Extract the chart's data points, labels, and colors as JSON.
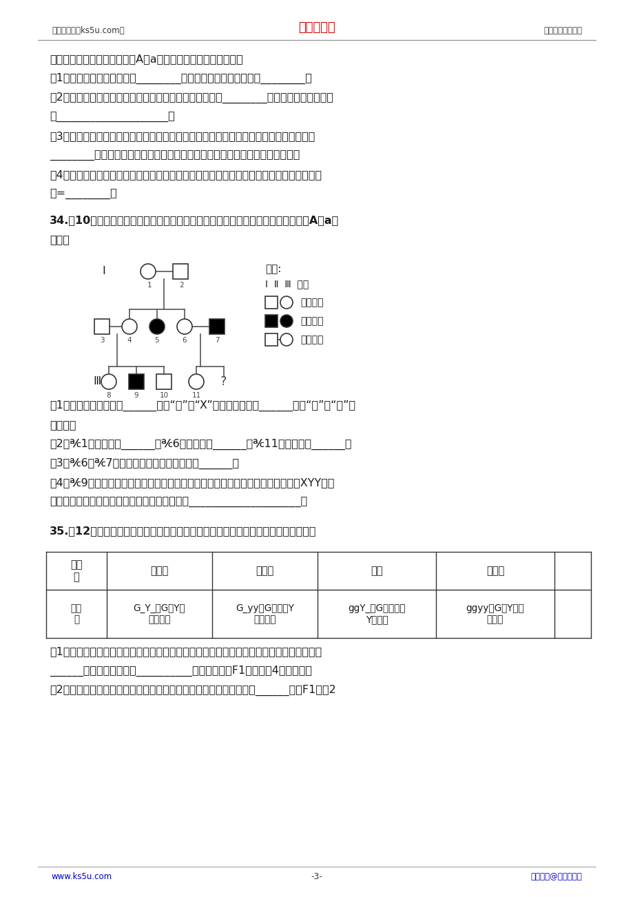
{
  "header_left": "高考资源网（ks5u.com）",
  "header_center": "高考资源网",
  "header_right": "您身边的高考专家",
  "footer_left": "www.ks5u.com",
  "footer_center": "-3-",
  "footer_right": "版权所有@高考资源网",
  "bg_color": "#ffffff",
  "header_color_red": "#cc0000",
  "footer_color": "#0000cc",
  "text_color": "#1a1a1a",
  "line_color": "#555555",
  "body_lines": [
    "相关基因位于常染色体上，用A、a表示。请分析回答下列问题：",
    "（1）豚鼠毛色的显性性状是________，黑色亲本豚鼠的基因型是________。",
    "（2）黑色豚鼠杂交后出现白色豚鼠的现象在遗传学上称为________，产生这种现象的原因",
    "是____________________。",
    "（3）欲测定子代某个黑色豚鼠是纯合子还是杂合子，可让它与白色豚鼠杂交，若后代出现",
    "________色，可认定该黑色豚鼠为杂合子；否则，该黑色豚鼠很可能是纯合子。",
    "（4）若让子代中所有黑色豚鼠和白色豚鼠交配，预计下一代中豚鼠毛色的比例是：黑色：白",
    "色=________。"
  ],
  "q34_intro": "34.（10分）下列为某家族白化病的遗传系谱图，请据图回答下列问题（相关基因用A、a表",
  "q34_intro2": "示）。",
  "q34_lines": [
    "（1）白化病的基因位于______（填“常”或“X”）染色体上，是______（填“显”或“隐”）",
    "性基因。",
    "（2）℀1的基因型是______，℀6的基因型是______，℀11的基因型是______。",
    "（3）℀6和℀7若再生第二胎，患病的概率为______。",
    "（4）℀9除了患白化病外还患一种罕见病，经检查发现其体细胞中性染色体组成是XYY，从",
    "减数分裂的过程分析产生这种罕见病的原因是：____________________。"
  ],
  "q35_intro": "35.（12分）茶树叶片的颜色与基因型之间的对应关系如下表。请据图回答下面问题：",
  "table_row1": [
    "表现\n型",
    "黄绿叶",
    "浓绿叶",
    "黄叶",
    "淡绿叶"
  ],
  "table_row2": [
    "基因\n型",
    "G_Y_（G和Y同\n时存在）",
    "G_yy（G存在，Y\n不存在）",
    "ggY_（G不存在，\nY存在）",
    "ggyy（G、Y均不\n存在）"
  ],
  "q35_lines": [
    "（1）已知决定茶树叶片颜色的两对等位基因位于两对同源染色体上。黄绿叶茶树的基因型有",
    "______种，其中基因型为__________的植株自交，F1将出现。4种表现型。",
    "（2）现以浓绿叶茶树与黄叶茶树为亲本进行杂交，若亲本的基因型为______，则F1只有2"
  ]
}
